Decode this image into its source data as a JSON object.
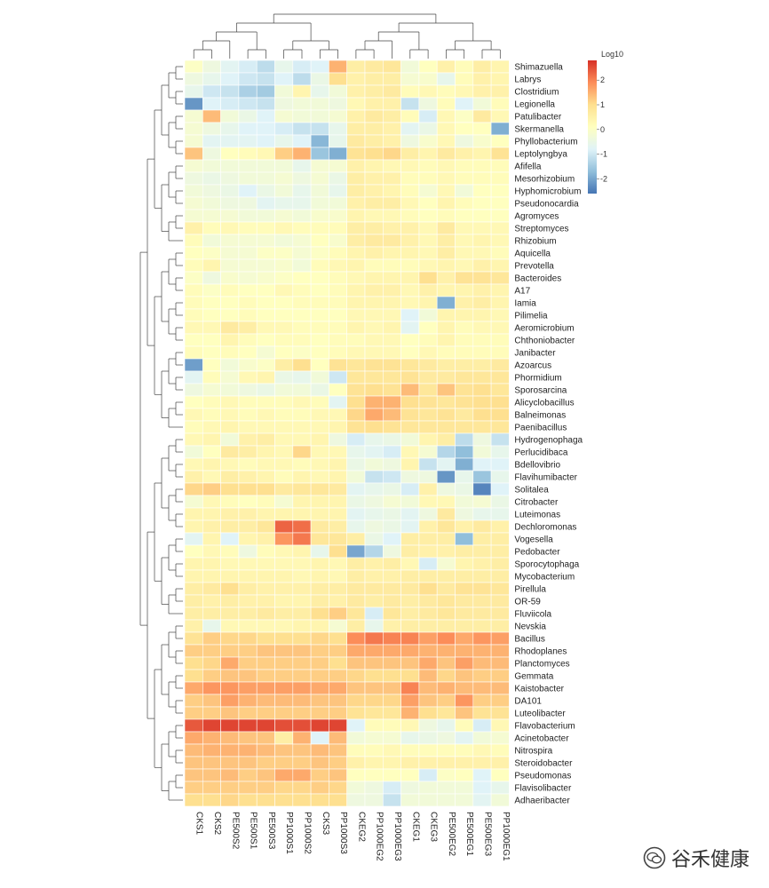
{
  "chart_data": {
    "type": "heatmap",
    "title": "",
    "xlabel": "",
    "ylabel": "",
    "colorbar": {
      "title": "Log10",
      "min": -2.6,
      "max": 2.8,
      "ticks": [
        -2,
        -1,
        0,
        1,
        2
      ],
      "colors": [
        "#4575b4",
        "#91bfdb",
        "#e0f3f8",
        "#ffffbf",
        "#fee090",
        "#fc8d59",
        "#d73027"
      ]
    },
    "columns": [
      "CKS1",
      "CKS2",
      "PE500S2",
      "PE500S1",
      "PE500S3",
      "PP1000S1",
      "PP1000S2",
      "CKS3",
      "PP1000S3",
      "CKEG2",
      "PP1000EG2",
      "PP1000EG3",
      "CKEG1",
      "CKEG3",
      "PE500EG2",
      "PE500EG1",
      "PE500EG3",
      "PP1000EG1"
    ],
    "rows": [
      "Shimazuella",
      "Labrys",
      "Clostridium",
      "Legionella",
      "Patulibacter",
      "Skermanella",
      "Phyllobacterium",
      "Leptolyngbya",
      "Afifella",
      "Mesorhizobium",
      "Hyphomicrobium",
      "Pseudonocardia",
      "Agromyces",
      "Streptomyces",
      "Rhizobium",
      "Aquicella",
      "Prevotella",
      "Bacteroides",
      "A17",
      "Iamia",
      "Pilimelia",
      "Aeromicrobium",
      "Chthoniobacter",
      "Janibacter",
      "Azoarcus",
      "Phormidium",
      "Sporosarcina",
      "Alicyclobacillus",
      "Balneimonas",
      "Paenibacillus",
      "Hydrogenophaga",
      "Perlucidibaca",
      "Bdellovibrio",
      "Flavihumibacter",
      "Solitalea",
      "Citrobacter",
      "Luteimonas",
      "Dechloromonas",
      "Vogesella",
      "Pedobacter",
      "Sporocytophaga",
      "Mycobacterium",
      "Pirellula",
      "OR-59",
      "Fluviicola",
      "Nevskia",
      "Bacillus",
      "Rhodoplanes",
      "Planctomyces",
      "Gemmata",
      "Kaistobacter",
      "DA101",
      "Luteolibacter",
      "Flavobacterium",
      "Acinetobacter",
      "Nitrospira",
      "Steroidobacter",
      "Pseudomonas",
      "Flavisolibacter",
      "Adhaeribacter"
    ],
    "values": [
      [
        0,
        -0.4,
        -0.7,
        -0.9,
        -1.2,
        -0.6,
        -0.9,
        -0.8,
        1.5,
        0.6,
        0.7,
        0.8,
        -0.3,
        0.1,
        0.5,
        0.2,
        0.6,
        0.4
      ],
      [
        -0.4,
        -0.6,
        -0.8,
        -1.0,
        -1.1,
        -0.8,
        -1.2,
        -0.5,
        1.0,
        0.5,
        0.6,
        0.6,
        -0.2,
        -0.1,
        -0.6,
        0.2,
        0.5,
        0.4
      ],
      [
        -0.6,
        -1.0,
        -1.1,
        -1.4,
        -1.5,
        -0.3,
        0.4,
        -0.6,
        -0.3,
        0.5,
        0.6,
        0.7,
        0.2,
        0.3,
        0.2,
        0.3,
        0.5,
        0.5
      ],
      [
        -2.2,
        -0.8,
        -0.9,
        -1.0,
        -1.1,
        -0.4,
        -0.3,
        -0.3,
        -0.4,
        0.3,
        0.5,
        0.5,
        -1.1,
        -0.4,
        0.2,
        -0.8,
        -0.3,
        0.2
      ],
      [
        -0.2,
        1.4,
        -0.3,
        -0.5,
        -0.8,
        -0.2,
        -0.3,
        -0.3,
        -0.2,
        0.5,
        0.7,
        0.6,
        0.2,
        -0.9,
        0.3,
        0.0,
        0.7,
        0.3
      ],
      [
        -0.2,
        -0.4,
        -0.6,
        -0.8,
        -0.8,
        -0.9,
        -1.1,
        -1.1,
        -0.6,
        0.6,
        0.6,
        0.5,
        -0.7,
        -0.5,
        0.3,
        0.1,
        0.1,
        -1.9
      ],
      [
        -0.2,
        -0.7,
        -0.7,
        -0.7,
        -0.8,
        -0.6,
        -0.8,
        -1.8,
        -0.6,
        0.7,
        0.6,
        0.5,
        -0.4,
        -0.1,
        0.3,
        -0.4,
        -0.1,
        0.1
      ],
      [
        1.3,
        -0.4,
        0.1,
        0.2,
        0.3,
        1.2,
        1.5,
        -1.6,
        -1.9,
        0.9,
        1.0,
        1.1,
        0.6,
        0.4,
        0.7,
        0.5,
        0.4,
        0.9
      ],
      [
        -0.2,
        -0.3,
        -0.3,
        -0.3,
        -0.3,
        -0.3,
        -0.6,
        -0.2,
        -0.2,
        0.5,
        0.4,
        0.3,
        0.3,
        0.2,
        0.3,
        0.2,
        0.2,
        0.2
      ],
      [
        -0.4,
        -0.5,
        -0.4,
        -0.3,
        -0.3,
        -0.2,
        -0.4,
        -0.2,
        -0.5,
        0.6,
        0.5,
        0.5,
        0.2,
        0.2,
        0.3,
        0.2,
        0.2,
        0.2
      ],
      [
        -0.3,
        -0.4,
        -0.5,
        -0.8,
        -0.5,
        -0.3,
        -0.6,
        -0.3,
        -0.6,
        0.6,
        0.5,
        0.4,
        0.2,
        -0.2,
        0.3,
        -0.3,
        0.1,
        0.1
      ],
      [
        -0.2,
        -0.3,
        -0.4,
        -0.4,
        -0.7,
        -0.6,
        -0.6,
        -0.3,
        -0.3,
        0.5,
        0.6,
        0.6,
        0.3,
        0.1,
        0.4,
        0.2,
        0.1,
        0.1
      ],
      [
        -0.2,
        -0.2,
        -0.2,
        -0.3,
        -0.3,
        -0.2,
        -0.3,
        -0.1,
        -0.1,
        0.4,
        0.3,
        0.3,
        0.2,
        0.1,
        0.2,
        0.1,
        0.1,
        0.1
      ],
      [
        0.5,
        0.2,
        0.3,
        0.2,
        0.2,
        0.3,
        0.2,
        0.2,
        0.2,
        0.6,
        0.6,
        0.5,
        0.5,
        0.3,
        0.7,
        0.3,
        0.3,
        0.3
      ],
      [
        0.2,
        -0.3,
        -0.2,
        -0.2,
        -0.2,
        -0.3,
        -0.2,
        0.1,
        -0.1,
        0.6,
        0.7,
        0.7,
        0.5,
        0.3,
        0.6,
        0.3,
        0.4,
        0.3
      ],
      [
        0.1,
        0.0,
        -0.2,
        -0.2,
        0.0,
        0.0,
        -0.2,
        0.0,
        0.2,
        0.4,
        0.5,
        0.4,
        0.4,
        0.3,
        0.6,
        0.3,
        0.3,
        0.2
      ],
      [
        0.2,
        0.4,
        -0.2,
        -0.2,
        -0.2,
        -0.1,
        -0.3,
        0.2,
        0.3,
        0.4,
        0.2,
        0.2,
        0.2,
        0.3,
        0.4,
        0.3,
        0.5,
        0.4
      ],
      [
        0.0,
        -0.4,
        -0.1,
        -0.2,
        -0.1,
        0.0,
        0.1,
        0.1,
        0.2,
        0.3,
        0.4,
        0.4,
        0.4,
        1.0,
        0.5,
        0.9,
        0.9,
        0.8
      ],
      [
        0.2,
        0.0,
        0.2,
        0.1,
        0.1,
        0.3,
        0.2,
        0.1,
        0.2,
        0.4,
        0.5,
        0.5,
        0.3,
        0.5,
        0.4,
        0.4,
        0.5,
        0.4
      ],
      [
        0.2,
        0.1,
        0.1,
        0.2,
        0.1,
        0.1,
        0.2,
        0.2,
        0.2,
        0.4,
        0.4,
        0.4,
        0.3,
        0.4,
        -1.9,
        0.5,
        0.6,
        0.4
      ],
      [
        0.2,
        0.1,
        0.1,
        0.2,
        0.1,
        0.1,
        0.1,
        0.1,
        0.1,
        0.3,
        0.3,
        0.3,
        -0.8,
        -0.3,
        0.4,
        0.4,
        0.4,
        0.3
      ],
      [
        0.3,
        0.3,
        0.7,
        0.6,
        0.3,
        0.3,
        0.2,
        0.2,
        0.2,
        0.4,
        0.3,
        0.4,
        -0.7,
        0.1,
        0.4,
        0.2,
        0.3,
        0.3
      ],
      [
        0.1,
        0.1,
        0.4,
        0.2,
        0.1,
        0.2,
        0.2,
        0.1,
        0.2,
        0.2,
        0.3,
        0.3,
        0.1,
        0.2,
        0.4,
        0.2,
        0.2,
        0.2
      ],
      [
        0.2,
        0.1,
        0.2,
        0.1,
        -0.2,
        0.1,
        0.0,
        0.1,
        0.2,
        0.3,
        0.3,
        0.3,
        0.1,
        0.3,
        0.2,
        0.2,
        0.2,
        0.2
      ],
      [
        -2.1,
        0.1,
        -0.3,
        -0.1,
        0.0,
        0.6,
        1.0,
        0.1,
        0.9,
        0.8,
        0.9,
        0.9,
        0.8,
        0.7,
        0.6,
        0.6,
        0.6,
        0.7
      ],
      [
        -0.7,
        0.2,
        -0.2,
        0.3,
        0.4,
        -0.5,
        -0.6,
        -0.3,
        -1.0,
        0.8,
        0.8,
        0.8,
        0.9,
        0.7,
        0.7,
        0.8,
        0.8,
        0.8
      ],
      [
        -0.4,
        -0.2,
        -0.3,
        -0.4,
        -0.5,
        -0.3,
        -0.3,
        -0.5,
        0.1,
        0.9,
        1.0,
        0.9,
        1.4,
        0.8,
        1.3,
        0.9,
        1.0,
        0.8
      ],
      [
        0.1,
        0.2,
        0.3,
        0.2,
        0.2,
        0.2,
        0.3,
        0.2,
        -0.7,
        1.0,
        1.5,
        1.5,
        1.0,
        0.9,
        0.8,
        0.9,
        1.0,
        1.0
      ],
      [
        0.3,
        0.2,
        0.3,
        0.2,
        0.3,
        0.2,
        0.2,
        0.3,
        0.3,
        1.1,
        1.6,
        1.4,
        0.9,
        0.8,
        0.9,
        0.7,
        1.0,
        1.0
      ],
      [
        0.2,
        0.3,
        0.4,
        0.3,
        0.3,
        0.3,
        0.3,
        0.3,
        0.4,
        0.9,
        1.0,
        0.9,
        0.8,
        0.8,
        0.8,
        0.8,
        0.8,
        0.8
      ],
      [
        0.3,
        0.4,
        -0.3,
        0.5,
        0.6,
        0.3,
        0.3,
        0.4,
        -0.4,
        -0.9,
        -0.6,
        -0.5,
        -0.3,
        0.4,
        0.6,
        -1.2,
        -0.4,
        -1.1
      ],
      [
        -0.3,
        0.1,
        0.7,
        0.6,
        0.4,
        0.3,
        1.1,
        0.3,
        0.3,
        -0.6,
        -0.7,
        -0.9,
        0.3,
        -0.2,
        -1.3,
        -1.7,
        -0.3,
        -0.6
      ],
      [
        0.3,
        0.4,
        0.3,
        0.2,
        0.3,
        0.3,
        0.2,
        0.3,
        0.4,
        -0.5,
        -0.3,
        -0.4,
        0.4,
        -1.1,
        -0.7,
        -1.9,
        -0.8,
        -0.8
      ],
      [
        0.5,
        0.3,
        0.6,
        0.5,
        0.4,
        0.2,
        0.4,
        0.3,
        0.4,
        -0.3,
        -1.1,
        -1.0,
        -0.4,
        -0.4,
        -2.2,
        -0.6,
        -1.6,
        -0.6
      ],
      [
        1.1,
        1.2,
        1.0,
        1.0,
        1.0,
        0.7,
        0.8,
        0.8,
        0.7,
        -0.7,
        -0.6,
        -0.5,
        -0.9,
        0.5,
        -0.4,
        -0.5,
        -2.4,
        -0.8
      ],
      [
        -0.2,
        0.3,
        0.2,
        0.1,
        0.2,
        -0.2,
        0.4,
        0.4,
        0.4,
        -0.5,
        -0.4,
        -0.2,
        -0.3,
        0.3,
        0.3,
        -0.3,
        -0.2,
        -0.5
      ],
      [
        0.4,
        0.4,
        0.5,
        0.5,
        0.4,
        0.4,
        0.4,
        0.4,
        0.4,
        -0.7,
        -0.6,
        -0.5,
        -0.7,
        -0.4,
        0.7,
        -0.4,
        -0.6,
        -0.6
      ],
      [
        0.4,
        0.5,
        0.6,
        0.6,
        0.8,
        2.3,
        2.2,
        0.7,
        0.6,
        -0.6,
        -0.4,
        -0.5,
        -0.7,
        0.5,
        0.8,
        0.5,
        0.7,
        0.5
      ],
      [
        -0.7,
        0.4,
        -0.8,
        0.4,
        0.5,
        1.8,
        2.1,
        0.8,
        0.8,
        0.6,
        -0.5,
        -0.8,
        0.6,
        0.6,
        0.6,
        -1.7,
        0.6,
        0.6
      ],
      [
        0.1,
        0.3,
        0.2,
        -0.4,
        0.2,
        0.3,
        0.4,
        -0.6,
        1.0,
        -2.0,
        -1.3,
        -0.4,
        0.6,
        0.5,
        0.5,
        0.6,
        0.6,
        0.6
      ],
      [
        0.4,
        0.4,
        0.3,
        0.3,
        0.3,
        0.3,
        0.3,
        0.4,
        0.3,
        0.6,
        0.5,
        0.6,
        0.3,
        -0.9,
        -0.2,
        0.4,
        0.5,
        0.6
      ],
      [
        0.4,
        0.4,
        0.4,
        0.4,
        0.4,
        0.4,
        0.3,
        0.4,
        0.3,
        0.6,
        0.5,
        0.5,
        0.6,
        0.6,
        0.6,
        0.6,
        0.6,
        0.6
      ],
      [
        0.6,
        0.7,
        1.0,
        0.6,
        0.5,
        0.5,
        0.5,
        0.6,
        0.6,
        0.7,
        0.7,
        0.7,
        0.7,
        1.0,
        0.7,
        0.9,
        0.9,
        0.8
      ],
      [
        0.6,
        0.5,
        0.6,
        0.5,
        0.5,
        0.4,
        0.4,
        0.6,
        0.5,
        0.7,
        0.6,
        0.7,
        0.6,
        0.7,
        0.8,
        0.7,
        0.7,
        0.7
      ],
      [
        0.6,
        0.6,
        0.6,
        0.6,
        0.7,
        0.6,
        0.6,
        1.0,
        1.2,
        0.8,
        -0.9,
        0.8,
        0.6,
        0.7,
        0.8,
        0.7,
        0.7,
        0.7
      ],
      [
        0.5,
        -0.6,
        0.3,
        0.3,
        0.3,
        0.3,
        0.4,
        0.4,
        -0.2,
        0.6,
        -0.6,
        0.5,
        0.6,
        0.6,
        0.6,
        0.6,
        0.6,
        0.6
      ],
      [
        0.9,
        1.2,
        1.1,
        1.1,
        1.0,
        1.0,
        1.0,
        1.1,
        1.0,
        1.9,
        2.1,
        2.0,
        2.0,
        1.7,
        1.9,
        1.6,
        1.8,
        1.7
      ],
      [
        1.2,
        1.2,
        1.2,
        1.2,
        1.3,
        1.3,
        1.3,
        1.2,
        1.2,
        1.6,
        1.6,
        1.6,
        1.6,
        1.5,
        1.5,
        1.5,
        1.5,
        1.5
      ],
      [
        1.0,
        1.1,
        1.6,
        1.2,
        1.2,
        1.2,
        1.2,
        1.2,
        1.0,
        1.3,
        1.3,
        1.3,
        1.3,
        1.6,
        1.3,
        1.7,
        1.4,
        1.4
      ],
      [
        1.0,
        1.2,
        1.3,
        1.3,
        1.2,
        1.2,
        1.2,
        1.2,
        1.2,
        1.1,
        1.0,
        1.0,
        1.0,
        1.4,
        1.1,
        1.3,
        1.2,
        1.2
      ],
      [
        1.6,
        1.8,
        1.8,
        1.7,
        1.7,
        1.7,
        1.7,
        1.6,
        1.6,
        1.3,
        1.3,
        1.3,
        2.0,
        1.4,
        1.5,
        1.4,
        1.4,
        1.4
      ],
      [
        1.2,
        1.3,
        1.7,
        1.5,
        1.4,
        1.4,
        1.4,
        1.3,
        1.3,
        1.1,
        1.1,
        1.1,
        1.7,
        1.3,
        1.2,
        1.8,
        1.2,
        1.2
      ],
      [
        1.2,
        1.2,
        1.3,
        1.2,
        1.2,
        1.2,
        1.2,
        1.2,
        1.2,
        0.9,
        0.8,
        0.8,
        1.5,
        1.0,
        0.8,
        1.3,
        0.9,
        0.9
      ],
      [
        2.4,
        2.6,
        2.6,
        2.6,
        2.6,
        2.5,
        2.5,
        2.6,
        2.6,
        -0.8,
        0.2,
        0.2,
        0.3,
        -0.4,
        -0.6,
        0.2,
        -0.9,
        0.3
      ],
      [
        1.6,
        1.5,
        1.4,
        1.3,
        1.3,
        0.6,
        1.5,
        -0.8,
        1.4,
        -0.3,
        -0.2,
        -0.2,
        -0.6,
        -0.5,
        -0.4,
        -0.7,
        -0.3,
        -0.2
      ],
      [
        1.4,
        1.5,
        1.5,
        1.5,
        1.4,
        1.3,
        1.3,
        1.4,
        1.3,
        0.2,
        0.2,
        0.3,
        0.2,
        0.2,
        0.2,
        0.2,
        0.3,
        0.2
      ],
      [
        1.3,
        1.3,
        1.3,
        1.3,
        1.2,
        1.2,
        1.2,
        1.3,
        1.2,
        0.5,
        0.4,
        0.4,
        0.5,
        0.5,
        0.5,
        0.5,
        0.5,
        0.5
      ],
      [
        1.3,
        1.3,
        1.4,
        1.2,
        1.3,
        1.6,
        1.6,
        1.2,
        1.3,
        0.1,
        0.1,
        0.1,
        0.1,
        -0.9,
        0.0,
        0.1,
        -0.8,
        0.1
      ],
      [
        1.2,
        1.2,
        1.2,
        1.2,
        1.2,
        1.1,
        1.1,
        1.2,
        1.1,
        -0.3,
        -0.4,
        -0.9,
        -0.4,
        -0.3,
        -0.3,
        -0.3,
        -0.8,
        -0.6
      ],
      [
        1.0,
        1.0,
        1.1,
        1.0,
        1.0,
        1.0,
        1.0,
        1.0,
        1.0,
        -0.4,
        -0.4,
        -1.1,
        -0.3,
        -0.3,
        -0.3,
        -0.3,
        -0.7,
        -0.3
      ]
    ]
  },
  "watermark": {
    "text": "谷禾健康",
    "icon": "wechat-logo-icon"
  }
}
